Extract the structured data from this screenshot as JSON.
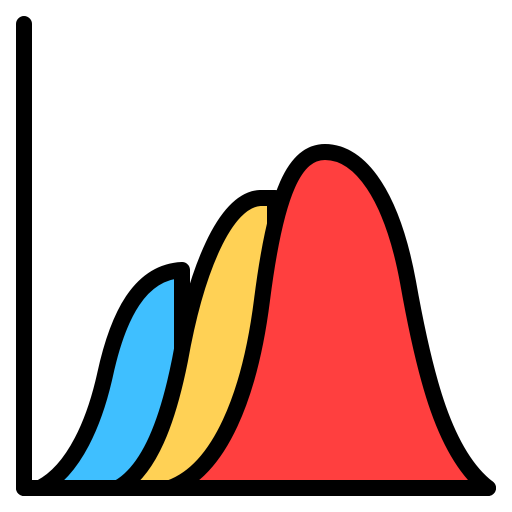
{
  "icon": {
    "name": "distribution-chart-icon",
    "colors": {
      "outline": "#000000",
      "background": "#ffffff",
      "back_curve": "#3fbfff",
      "middle_curve": "#ffd155",
      "front_curve": "#ff3f3f"
    }
  }
}
